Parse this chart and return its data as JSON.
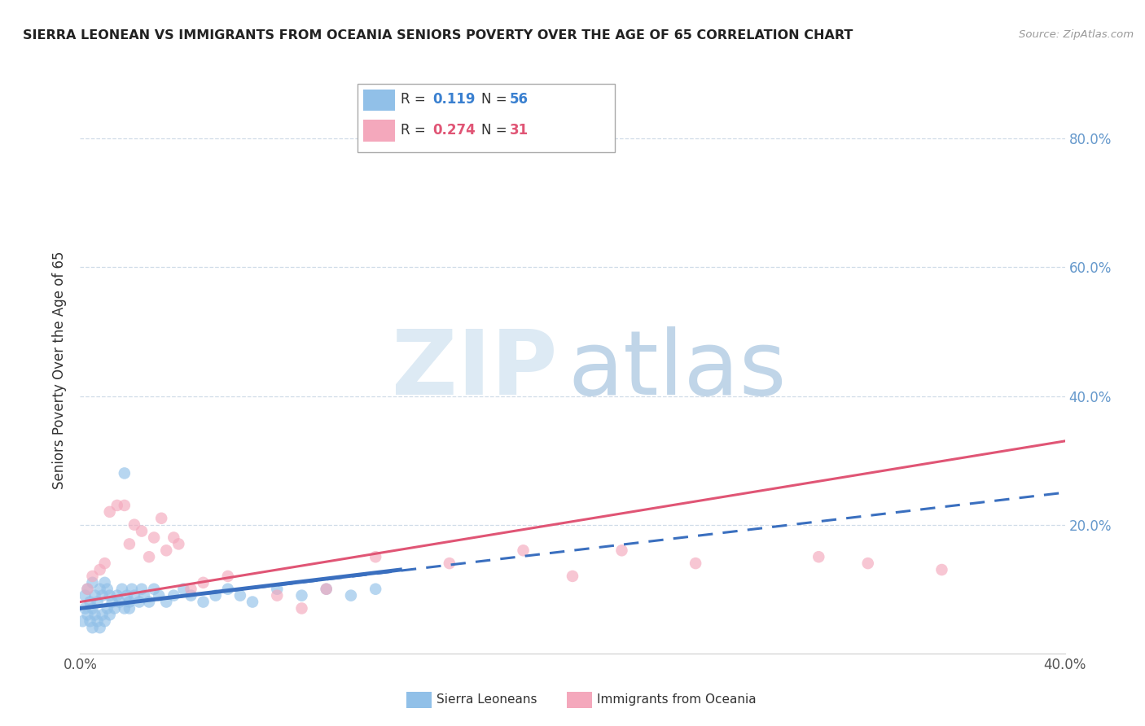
{
  "title": "SIERRA LEONEAN VS IMMIGRANTS FROM OCEANIA SENIORS POVERTY OVER THE AGE OF 65 CORRELATION CHART",
  "source": "Source: ZipAtlas.com",
  "ylabel": "Seniors Poverty Over the Age of 65",
  "xlim": [
    0.0,
    0.4
  ],
  "ylim": [
    0.0,
    0.88
  ],
  "blue_color": "#91c0e8",
  "pink_color": "#f4a8bc",
  "blue_line_color": "#3a6fbf",
  "pink_line_color": "#e05575",
  "grid_color": "#d0dce8",
  "title_color": "#222222",
  "right_tick_color": "#6699cc",
  "watermark_zip_color": "#ddeaf4",
  "watermark_atlas_color": "#c0d5e8",
  "sierra_x": [
    0.001,
    0.002,
    0.002,
    0.003,
    0.003,
    0.004,
    0.004,
    0.005,
    0.005,
    0.005,
    0.006,
    0.006,
    0.007,
    0.007,
    0.008,
    0.008,
    0.009,
    0.009,
    0.01,
    0.01,
    0.011,
    0.011,
    0.012,
    0.012,
    0.013,
    0.014,
    0.015,
    0.016,
    0.017,
    0.018,
    0.019,
    0.02,
    0.021,
    0.022,
    0.024,
    0.025,
    0.026,
    0.028,
    0.03,
    0.032,
    0.035,
    0.038,
    0.042,
    0.045,
    0.05,
    0.055,
    0.06,
    0.065,
    0.07,
    0.08,
    0.09,
    0.1,
    0.11,
    0.12,
    0.018,
    0.02
  ],
  "sierra_y": [
    0.05,
    0.07,
    0.09,
    0.06,
    0.1,
    0.05,
    0.08,
    0.04,
    0.07,
    0.11,
    0.06,
    0.09,
    0.05,
    0.08,
    0.04,
    0.1,
    0.06,
    0.09,
    0.05,
    0.11,
    0.07,
    0.1,
    0.06,
    0.09,
    0.08,
    0.07,
    0.09,
    0.08,
    0.1,
    0.07,
    0.09,
    0.08,
    0.1,
    0.09,
    0.08,
    0.1,
    0.09,
    0.08,
    0.1,
    0.09,
    0.08,
    0.09,
    0.1,
    0.09,
    0.08,
    0.09,
    0.1,
    0.09,
    0.08,
    0.1,
    0.09,
    0.1,
    0.09,
    0.1,
    0.28,
    0.07
  ],
  "oceania_x": [
    0.003,
    0.005,
    0.008,
    0.01,
    0.012,
    0.015,
    0.018,
    0.02,
    0.022,
    0.025,
    0.028,
    0.03,
    0.033,
    0.035,
    0.038,
    0.04,
    0.045,
    0.05,
    0.06,
    0.08,
    0.09,
    0.1,
    0.12,
    0.15,
    0.18,
    0.2,
    0.22,
    0.25,
    0.3,
    0.35,
    0.32
  ],
  "oceania_y": [
    0.1,
    0.12,
    0.13,
    0.14,
    0.22,
    0.23,
    0.23,
    0.17,
    0.2,
    0.19,
    0.15,
    0.18,
    0.21,
    0.16,
    0.18,
    0.17,
    0.1,
    0.11,
    0.12,
    0.09,
    0.07,
    0.1,
    0.15,
    0.14,
    0.16,
    0.12,
    0.16,
    0.14,
    0.15,
    0.13,
    0.14
  ]
}
